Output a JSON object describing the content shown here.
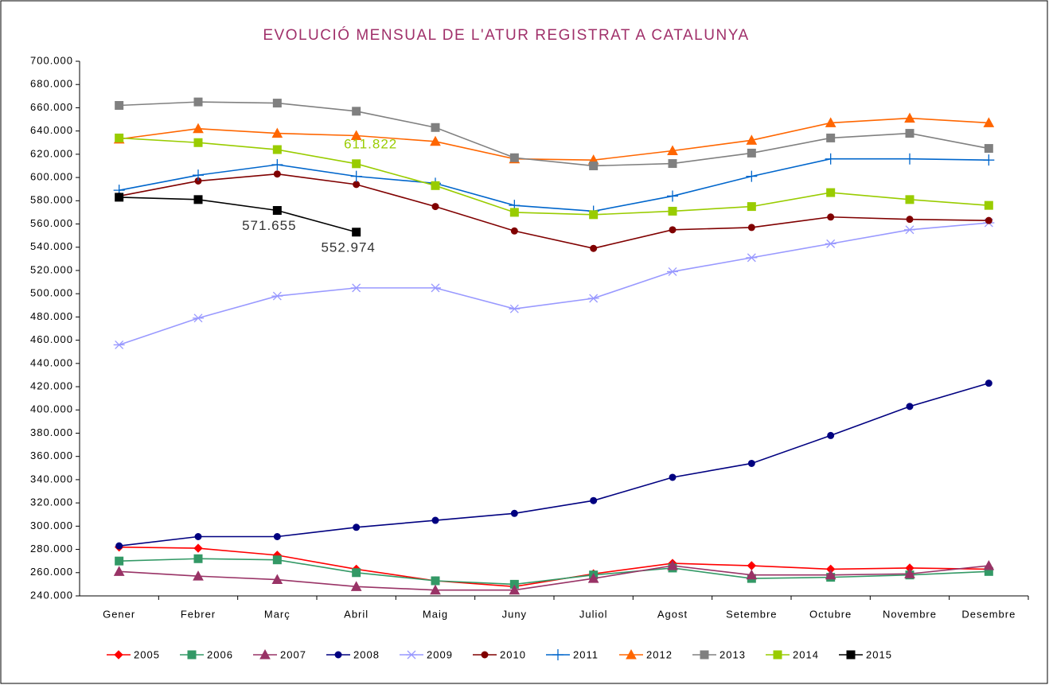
{
  "chart_data": {
    "type": "line",
    "title": "EVOLUCIÓ MENSUAL DE L'ATUR REGISTRAT A CATALUNYA",
    "categories": [
      "Gener",
      "Febrer",
      "Març",
      "Abril",
      "Maig",
      "Juny",
      "Juliol",
      "Agost",
      "Setembre",
      "Octubre",
      "Novembre",
      "Desembre"
    ],
    "series": [
      {
        "name": "2005",
        "color": "#ff0000",
        "marker": "diamond",
        "values": [
          282000,
          281000,
          275000,
          263000,
          253000,
          248000,
          259000,
          268000,
          266000,
          263000,
          264000,
          263000
        ]
      },
      {
        "name": "2006",
        "color": "#339966",
        "marker": "square",
        "values": [
          270000,
          272000,
          271000,
          260000,
          253000,
          250000,
          258000,
          264000,
          255000,
          256000,
          258000,
          261000
        ]
      },
      {
        "name": "2007",
        "color": "#993366",
        "marker": "triangle",
        "values": [
          261000,
          257000,
          254000,
          248000,
          245000,
          245000,
          255000,
          266000,
          258000,
          258000,
          259000,
          266000
        ]
      },
      {
        "name": "2008",
        "color": "#000080",
        "marker": "circle",
        "values": [
          283000,
          291000,
          291000,
          299000,
          305000,
          311000,
          322000,
          342000,
          354000,
          378000,
          403000,
          423000
        ]
      },
      {
        "name": "2009",
        "color": "#9999ff",
        "marker": "star",
        "values": [
          456000,
          479000,
          498000,
          505000,
          505000,
          487000,
          496000,
          519000,
          531000,
          543000,
          555000,
          561000
        ]
      },
      {
        "name": "2010",
        "color": "#800000",
        "marker": "circle",
        "values": [
          584000,
          597000,
          603000,
          594000,
          575000,
          554000,
          539000,
          555000,
          557000,
          566000,
          564000,
          563000
        ]
      },
      {
        "name": "2011",
        "color": "#0066cc",
        "marker": "plus",
        "values": [
          589000,
          602000,
          611000,
          601000,
          595000,
          576000,
          571000,
          584000,
          601000,
          616000,
          616000,
          615000
        ]
      },
      {
        "name": "2012",
        "color": "#ff6600",
        "marker": "triangle",
        "values": [
          633000,
          642000,
          638000,
          636000,
          631000,
          616000,
          615000,
          623000,
          632000,
          647000,
          651000,
          647000
        ]
      },
      {
        "name": "2013",
        "color": "#808080",
        "marker": "square",
        "values": [
          662000,
          665000,
          664000,
          657000,
          643000,
          617000,
          610000,
          612000,
          621000,
          634000,
          638000,
          625000
        ]
      },
      {
        "name": "2014",
        "color": "#99cc00",
        "marker": "square",
        "values": [
          634000,
          630000,
          624000,
          611822,
          593000,
          570000,
          568000,
          571000,
          575000,
          587000,
          581000,
          576000
        ],
        "value_labels": [
          null,
          null,
          null,
          "611.822",
          null,
          null,
          null,
          null,
          null,
          null,
          null,
          null
        ]
      },
      {
        "name": "2015",
        "color": "#000000",
        "marker": "square",
        "values": [
          583000,
          581000,
          571655,
          552974,
          null,
          null,
          null,
          null,
          null,
          null,
          null,
          null
        ],
        "value_labels": [
          null,
          null,
          "571.655",
          "552.974",
          null,
          null,
          null,
          null,
          null,
          null,
          null,
          null
        ]
      }
    ],
    "ylim": [
      240000,
      700000
    ],
    "yticks": [
      {
        "value": 240000,
        "label": "240.000"
      },
      {
        "value": 260000,
        "label": "260.000"
      },
      {
        "value": 280000,
        "label": "280.000"
      },
      {
        "value": 300000,
        "label": "300.000"
      },
      {
        "value": 320000,
        "label": "320.000"
      },
      {
        "value": 340000,
        "label": "340.000"
      },
      {
        "value": 360000,
        "label": "360.000"
      },
      {
        "value": 380000,
        "label": "380.000"
      },
      {
        "value": 400000,
        "label": "400.000"
      },
      {
        "value": 420000,
        "label": "420.000"
      },
      {
        "value": 440000,
        "label": "440.000"
      },
      {
        "value": 460000,
        "label": "460.000"
      },
      {
        "value": 480000,
        "label": "480.000"
      },
      {
        "value": 500000,
        "label": "500.000"
      },
      {
        "value": 520000,
        "label": "520.000"
      },
      {
        "value": 540000,
        "label": "540.000"
      },
      {
        "value": 560000,
        "label": "560.000"
      },
      {
        "value": 580000,
        "label": "580.000"
      },
      {
        "value": 600000,
        "label": "600.000"
      },
      {
        "value": 620000,
        "label": "620.000"
      },
      {
        "value": 640000,
        "label": "640.000"
      },
      {
        "value": 660000,
        "label": "660.000"
      },
      {
        "value": 680000,
        "label": "680.000"
      },
      {
        "value": 700000,
        "label": "700.000"
      }
    ],
    "grid": false,
    "legend": "bottom"
  }
}
